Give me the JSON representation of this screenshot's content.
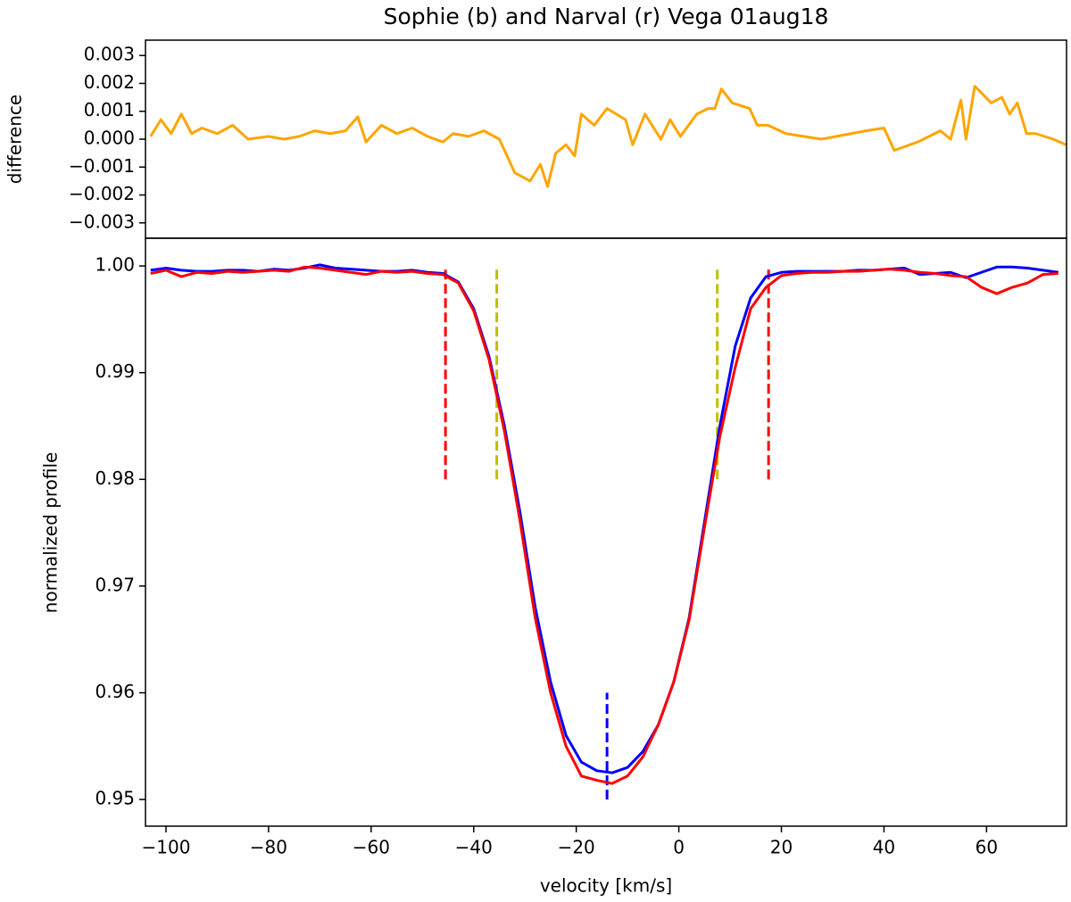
{
  "chart_data": [
    {
      "type": "line",
      "title": "Sophie (b) and Narval (r) Vega 01aug18",
      "ylabel": "difference",
      "xlim": [
        -104,
        75.6
      ],
      "ylim": [
        -0.00355,
        0.00355
      ],
      "yticks": [
        {
          "value": -0.003,
          "label": "−0.003"
        },
        {
          "value": -0.002,
          "label": "−0.002"
        },
        {
          "value": -0.001,
          "label": "−0.001"
        },
        {
          "value": 0,
          "label": "0.000"
        },
        {
          "value": 0.001,
          "label": "0.001"
        },
        {
          "value": 0.002,
          "label": "0.002"
        },
        {
          "value": 0.003,
          "label": "0.003"
        }
      ],
      "x": [
        -103,
        -101,
        -99,
        -97,
        -95,
        -93,
        -90,
        -87,
        -84,
        -80,
        -77,
        -74,
        -71,
        -68,
        -65,
        -62.6,
        -61,
        -58,
        -55,
        -52,
        -49,
        -46,
        -44,
        -41,
        -38,
        -35,
        -32,
        -29,
        -27,
        -25.6,
        -24,
        -22,
        -20.3,
        -19,
        -16.5,
        -14,
        -10.4,
        -9,
        -6.6,
        -3.5,
        -1.7,
        0.3,
        3.5,
        5.7,
        7,
        8.3,
        10.4,
        13.8,
        15.3,
        17.4,
        20.9,
        27.8,
        36.5,
        40,
        42,
        46.6,
        51,
        53,
        55,
        56,
        57.7,
        60.9,
        63,
        64.5,
        66,
        67.8,
        69.6,
        73,
        75.5
      ],
      "series": [
        {
          "color": "#ffa500",
          "values": [
            0.0001,
            0.0007,
            0.0002,
            0.0009,
            0.0002,
            0.0004,
            0.0002,
            0.0005,
            0.0,
            0.0001,
            0.0,
            0.0001,
            0.0003,
            0.0002,
            0.0003,
            0.0008,
            -0.0001,
            0.0005,
            0.0002,
            0.0004,
            0.0001,
            -0.0001,
            0.0002,
            0.0001,
            0.0003,
            0.0,
            -0.0012,
            -0.0015,
            -0.0009,
            -0.0017,
            -0.0005,
            -0.0002,
            -0.0006,
            0.0009,
            0.0005,
            0.0011,
            0.0007,
            -0.0002,
            0.0009,
            0.0,
            0.0007,
            0.0001,
            0.0009,
            0.0011,
            0.0011,
            0.0018,
            0.0013,
            0.0011,
            0.0005,
            0.0005,
            0.0002,
            0.0,
            0.0003,
            0.0004,
            -0.0004,
            -0.0001,
            0.0003,
            0.0,
            0.0014,
            0.0,
            0.0019,
            0.0013,
            0.0015,
            0.0009,
            0.0013,
            0.0002,
            0.0002,
            0.0,
            -0.0002
          ]
        }
      ]
    },
    {
      "type": "line",
      "xlabel": "velocity [km/s]",
      "ylabel": "normalized profile",
      "xlim": [
        -104,
        75.6
      ],
      "ylim": [
        0.9475,
        1.0026
      ],
      "xticks": [
        {
          "value": -100,
          "label": "−100"
        },
        {
          "value": -80,
          "label": "−80"
        },
        {
          "value": -60,
          "label": "−60"
        },
        {
          "value": -40,
          "label": "−40"
        },
        {
          "value": -20,
          "label": "−20"
        },
        0,
        20,
        40,
        60
      ],
      "yticks": [
        0.95,
        0.96,
        0.97,
        0.98,
        0.99,
        {
          "value": 1.0,
          "label": "1.00"
        }
      ],
      "x": [
        -103,
        -100,
        -97,
        -94,
        -91,
        -88,
        -85,
        -82,
        -79,
        -76,
        -73,
        -70,
        -67,
        -64,
        -61,
        -58,
        -55,
        -52,
        -49,
        -46,
        -43,
        -40,
        -37,
        -34,
        -31,
        -28,
        -25,
        -22,
        -19,
        -16,
        -13,
        -10,
        -7,
        -4,
        -1,
        2,
        5,
        8,
        11,
        14,
        17,
        20,
        23,
        26,
        29,
        32,
        35,
        38,
        41,
        44,
        47,
        50,
        53,
        56,
        59,
        62,
        65,
        68,
        71,
        74
      ],
      "series": [
        {
          "color": "#0000ff",
          "values": [
            0.9996,
            0.9998,
            0.9996,
            0.9995,
            0.9995,
            0.9996,
            0.9996,
            0.9995,
            0.9997,
            0.9996,
            0.9998,
            1.0001,
            0.9998,
            0.9997,
            0.9996,
            0.9995,
            0.9995,
            0.9996,
            0.9994,
            0.9993,
            0.9985,
            0.996,
            0.9915,
            0.985,
            0.977,
            0.968,
            0.961,
            0.956,
            0.9535,
            0.9527,
            0.9525,
            0.953,
            0.9545,
            0.957,
            0.961,
            0.967,
            0.976,
            0.985,
            0.9925,
            0.997,
            0.999,
            0.9994,
            0.9995,
            0.9995,
            0.9995,
            0.9995,
            0.9996,
            0.9996,
            0.9997,
            0.9998,
            0.9992,
            0.9993,
            0.9994,
            0.9989,
            0.9994,
            0.9999,
            0.9999,
            0.9998,
            0.9996,
            0.9994
          ]
        },
        {
          "color": "#ff0000",
          "values": [
            0.9993,
            0.9996,
            0.999,
            0.9994,
            0.9993,
            0.9995,
            0.9994,
            0.9995,
            0.9996,
            0.9995,
            0.9999,
            0.9998,
            0.9996,
            0.9994,
            0.9992,
            0.9995,
            0.9994,
            0.9995,
            0.9993,
            0.9992,
            0.9984,
            0.9958,
            0.9912,
            0.9845,
            0.9762,
            0.967,
            0.96,
            0.955,
            0.9522,
            0.9518,
            0.9515,
            0.9522,
            0.954,
            0.957,
            0.961,
            0.9668,
            0.9755,
            0.984,
            0.9905,
            0.996,
            0.998,
            0.9991,
            0.9993,
            0.9994,
            0.9994,
            0.9995,
            0.9995,
            0.9996,
            0.9997,
            0.9996,
            0.9994,
            0.9993,
            0.9991,
            0.999,
            0.998,
            0.9974,
            0.998,
            0.9984,
            0.9992,
            0.9993
          ]
        }
      ],
      "vlines": [
        {
          "x": -45.5,
          "ymin": 0.98,
          "ymax": 1.0,
          "color": "#ff0000"
        },
        {
          "x": 17.5,
          "ymin": 0.98,
          "ymax": 1.0,
          "color": "#ff0000"
        },
        {
          "x": -35.5,
          "ymin": 0.98,
          "ymax": 1.0,
          "color": "#bfbf00"
        },
        {
          "x": 7.5,
          "ymin": 0.98,
          "ymax": 1.0,
          "color": "#bfbf00"
        },
        {
          "x": -14,
          "ymin": 0.95,
          "ymax": 0.96,
          "color": "#0000ff"
        }
      ]
    }
  ]
}
